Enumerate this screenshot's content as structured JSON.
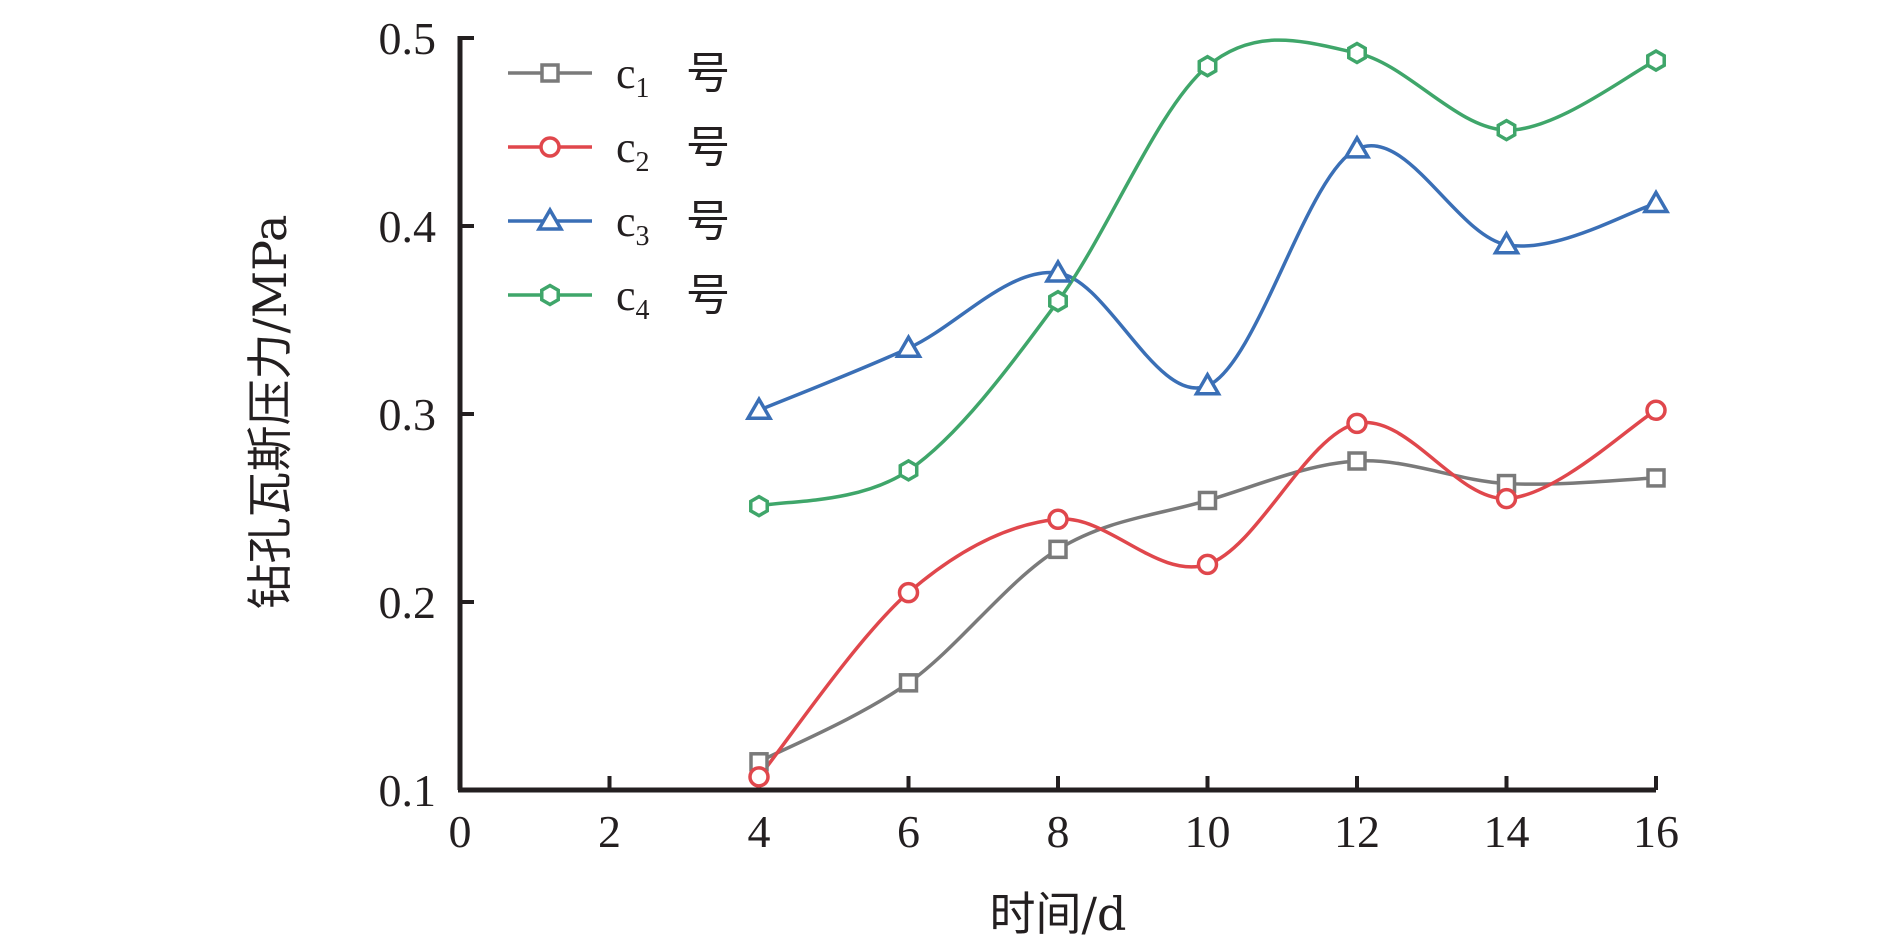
{
  "chart_data": {
    "type": "line",
    "xlabel": "时间/d",
    "ylabel": "钻孔瓦斯压力/MPa",
    "xlim": [
      0,
      16
    ],
    "ylim": [
      0.1,
      0.5
    ],
    "xticks": [
      "0",
      "2",
      "4",
      "6",
      "8",
      "10",
      "12",
      "14",
      "16"
    ],
    "yticks": [
      "0.1",
      "0.2",
      "0.3",
      "0.4",
      "0.5"
    ],
    "grid": false,
    "legend_position": "top-left",
    "x": [
      4,
      6,
      8,
      10,
      12,
      14,
      16
    ],
    "series": [
      {
        "name_main": "c",
        "name_sub": "1",
        "name_suffix": "号",
        "marker": "square",
        "color": "#7a7a7a",
        "values": [
          0.115,
          0.157,
          0.228,
          0.254,
          0.275,
          0.263,
          0.266
        ]
      },
      {
        "name_main": "c",
        "name_sub": "2",
        "name_suffix": "号",
        "marker": "circle",
        "color": "#e0474c",
        "values": [
          0.107,
          0.205,
          0.244,
          0.22,
          0.295,
          0.255,
          0.302
        ]
      },
      {
        "name_main": "c",
        "name_sub": "3",
        "name_suffix": "号",
        "marker": "triangle",
        "color": "#3a6fb6",
        "values": [
          0.302,
          0.335,
          0.375,
          0.315,
          0.441,
          0.39,
          0.412
        ]
      },
      {
        "name_main": "c",
        "name_sub": "4",
        "name_suffix": "号",
        "marker": "hexagon",
        "color": "#3fa66a",
        "values": [
          0.251,
          0.27,
          0.36,
          0.485,
          0.492,
          0.451,
          0.488
        ]
      }
    ]
  }
}
